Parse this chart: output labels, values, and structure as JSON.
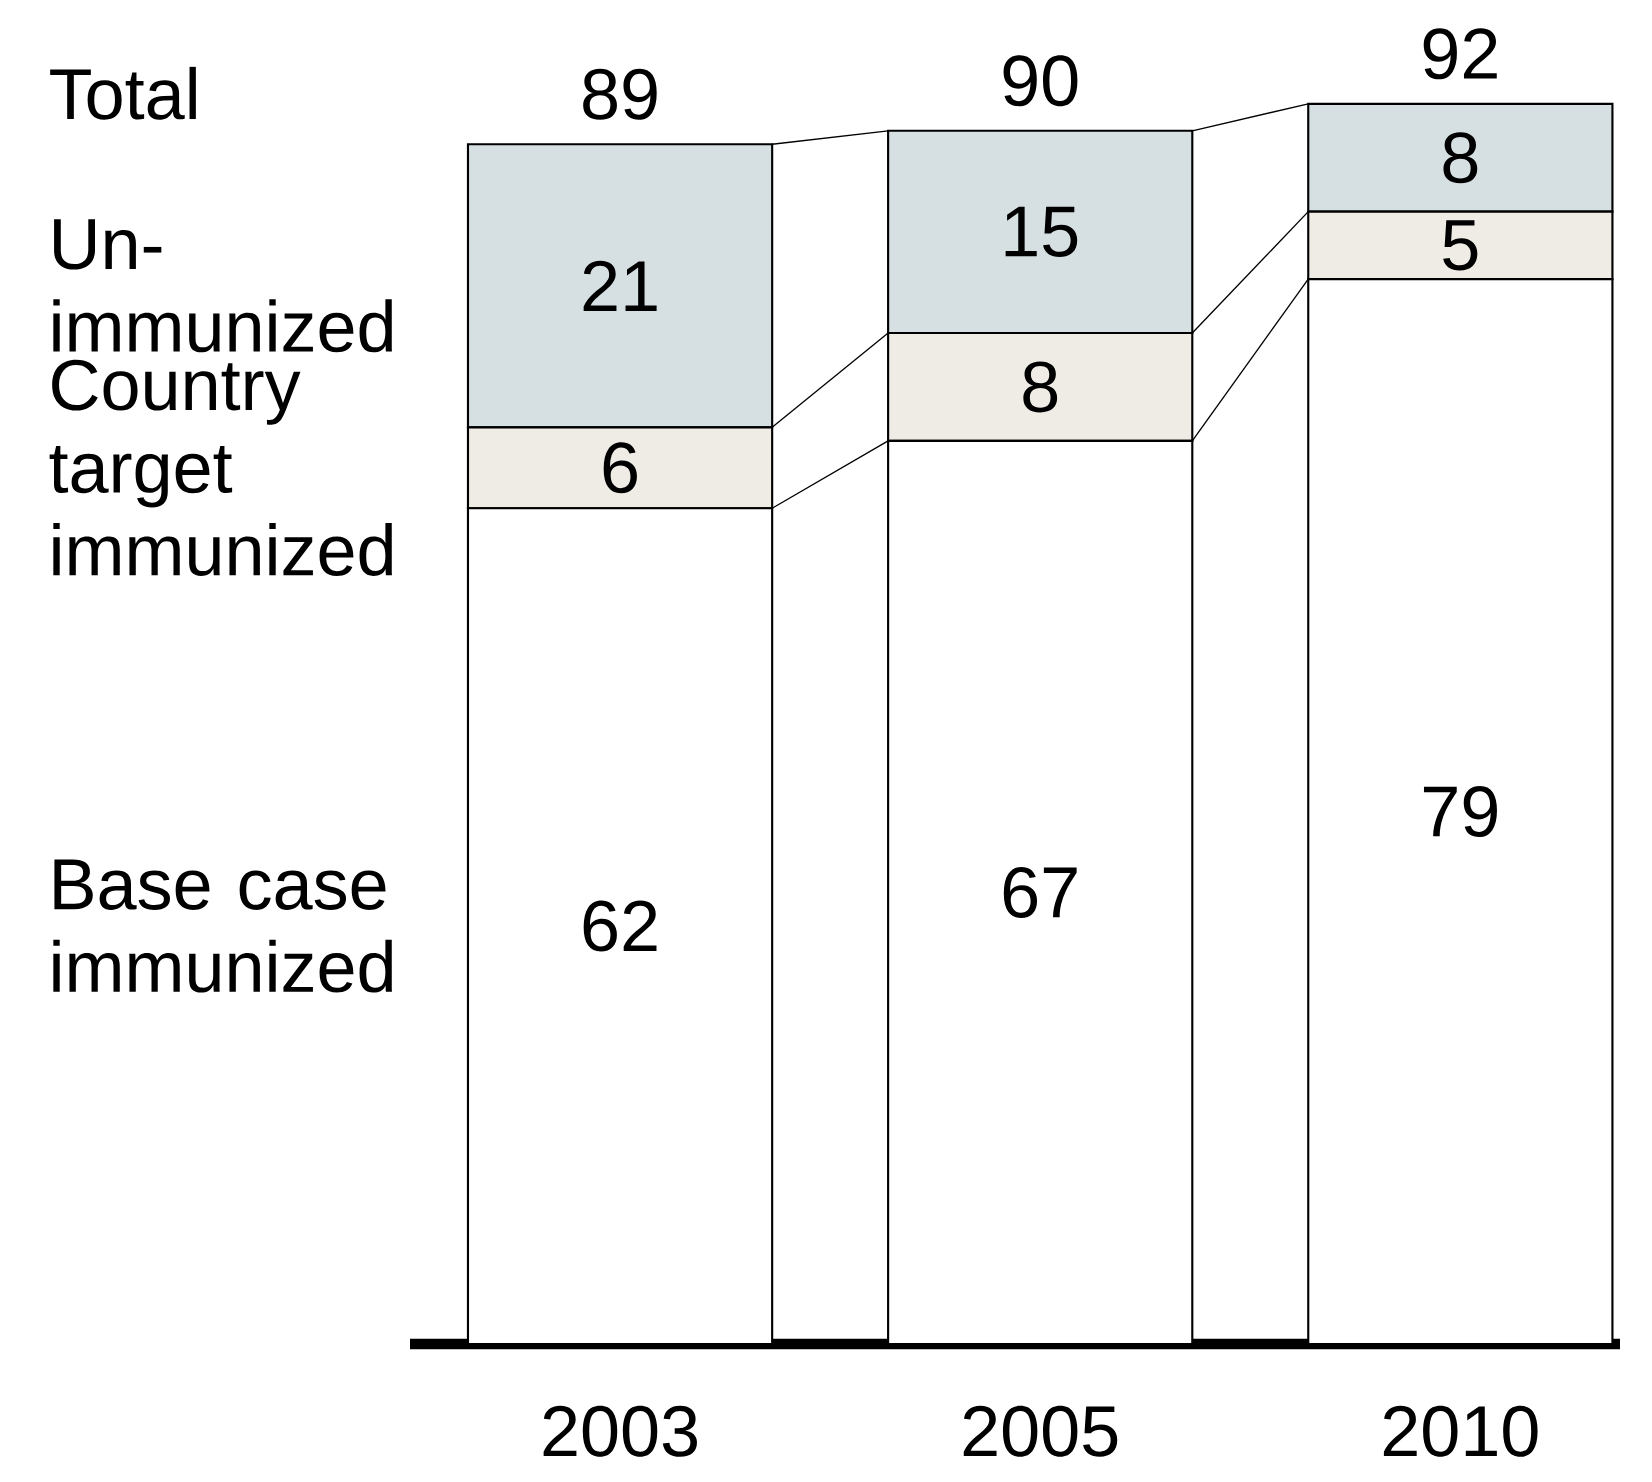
{
  "chart_data": {
    "type": "bar",
    "stacked": true,
    "categories": [
      "2003",
      "2005",
      "2010"
    ],
    "series": [
      {
        "name": "Base case immunized",
        "color": "#ffffff",
        "values": [
          62,
          67,
          79
        ]
      },
      {
        "name": "Country target immunized",
        "color": "#eeece4",
        "values": [
          6,
          8,
          5
        ]
      },
      {
        "name": "Un-immunized",
        "color": "#d6e0e3",
        "values": [
          21,
          15,
          8
        ]
      }
    ],
    "totals": [
      "89",
      "90",
      "92"
    ],
    "annotations": [
      "Total"
    ],
    "data_labels": true
  }
}
